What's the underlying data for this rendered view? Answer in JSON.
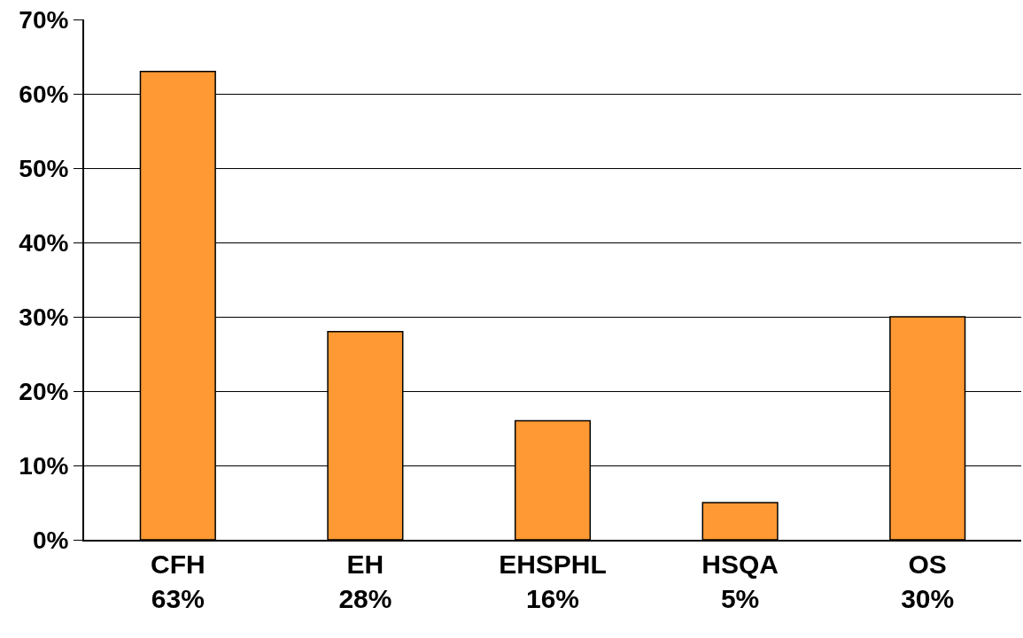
{
  "chart_data": {
    "type": "bar",
    "categories": [
      "CFH",
      "EH",
      "EHSPHL",
      "HSQA",
      "OS"
    ],
    "values": [
      63,
      28,
      16,
      5,
      30
    ],
    "value_labels": [
      "63%",
      "28%",
      "16%",
      "5%",
      "30%"
    ],
    "color": "#ff9933",
    "ylim": [
      0,
      70
    ],
    "yticks": [
      {
        "value": 0,
        "label": "0%"
      },
      {
        "value": 10,
        "label": "10%"
      },
      {
        "value": 20,
        "label": "20%"
      },
      {
        "value": 30,
        "label": "30%"
      },
      {
        "value": 40,
        "label": "40%"
      },
      {
        "value": 50,
        "label": "50%"
      },
      {
        "value": 60,
        "label": "60%"
      },
      {
        "value": 70,
        "label": "70%"
      }
    ],
    "grid": "y"
  }
}
